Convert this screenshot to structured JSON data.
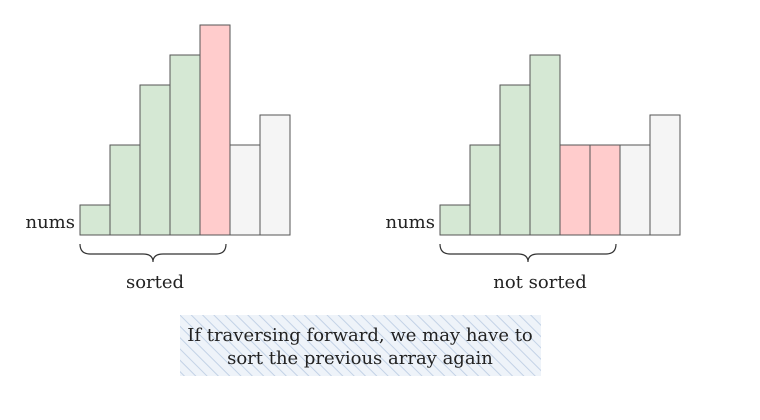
{
  "colors": {
    "green": "#d5e8d4",
    "red": "#ffcccc",
    "gray": "#f5f5f5",
    "stroke": "#555555",
    "note_bg": "#eef3f9",
    "note_hatch": "#c3d2e6"
  },
  "panels": [
    {
      "label": "nums",
      "caption": "sorted",
      "bars": [
        {
          "value": 1,
          "color": "green"
        },
        {
          "value": 3,
          "color": "green"
        },
        {
          "value": 5,
          "color": "green"
        },
        {
          "value": 6,
          "color": "green"
        },
        {
          "value": 7,
          "color": "red"
        },
        {
          "value": 3,
          "color": "gray"
        },
        {
          "value": 4,
          "color": "gray"
        }
      ]
    },
    {
      "label": "nums",
      "caption": "not sorted",
      "bars": [
        {
          "value": 1,
          "color": "green"
        },
        {
          "value": 3,
          "color": "green"
        },
        {
          "value": 5,
          "color": "green"
        },
        {
          "value": 6,
          "color": "green"
        },
        {
          "value": 3,
          "color": "red"
        },
        {
          "value": 3,
          "color": "red"
        },
        {
          "value": 3,
          "color": "gray"
        },
        {
          "value": 4,
          "color": "gray"
        }
      ]
    }
  ],
  "note": {
    "line1": "If traversing forward, we may have to",
    "line2": "sort the previous array again"
  }
}
